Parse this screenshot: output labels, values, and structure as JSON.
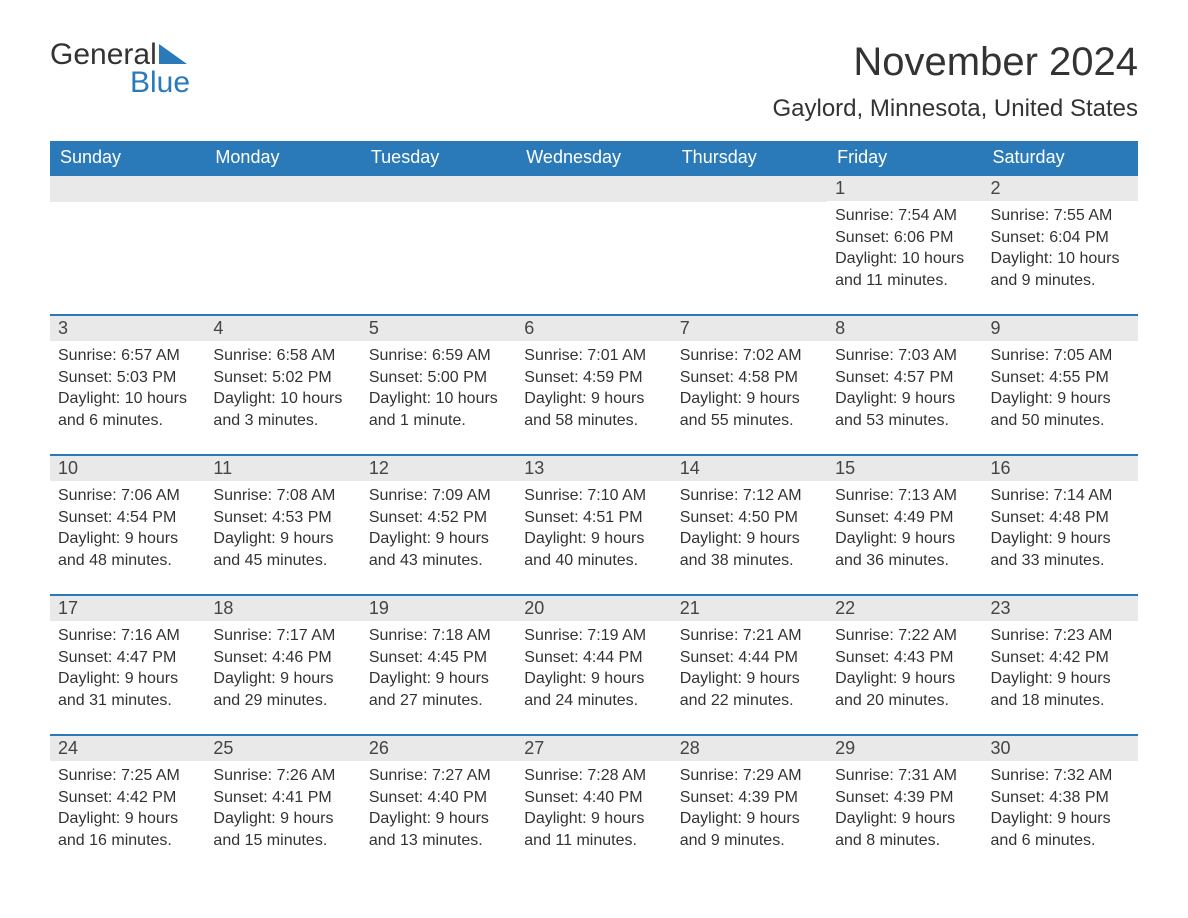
{
  "logo": {
    "text_general": "General",
    "text_blue": "Blue",
    "color_primary": "#2a7ab9",
    "color_text": "#333333"
  },
  "title": "November 2024",
  "location": "Gaylord, Minnesota, United States",
  "colors": {
    "header_bg": "#2a7ab9",
    "header_text": "#ffffff",
    "daynum_bg": "#e9e9e9",
    "border": "#2a7ab9",
    "body_text": "#333333",
    "page_bg": "#ffffff"
  },
  "font": {
    "family": "Arial",
    "title_size_pt": 30,
    "location_size_pt": 18,
    "header_size_pt": 14,
    "body_size_pt": 12
  },
  "day_headers": [
    "Sunday",
    "Monday",
    "Tuesday",
    "Wednesday",
    "Thursday",
    "Friday",
    "Saturday"
  ],
  "weeks": [
    [
      null,
      null,
      null,
      null,
      null,
      {
        "num": "1",
        "sunrise": "Sunrise: 7:54 AM",
        "sunset": "Sunset: 6:06 PM",
        "daylight": "Daylight: 10 hours and 11 minutes."
      },
      {
        "num": "2",
        "sunrise": "Sunrise: 7:55 AM",
        "sunset": "Sunset: 6:04 PM",
        "daylight": "Daylight: 10 hours and 9 minutes."
      }
    ],
    [
      {
        "num": "3",
        "sunrise": "Sunrise: 6:57 AM",
        "sunset": "Sunset: 5:03 PM",
        "daylight": "Daylight: 10 hours and 6 minutes."
      },
      {
        "num": "4",
        "sunrise": "Sunrise: 6:58 AM",
        "sunset": "Sunset: 5:02 PM",
        "daylight": "Daylight: 10 hours and 3 minutes."
      },
      {
        "num": "5",
        "sunrise": "Sunrise: 6:59 AM",
        "sunset": "Sunset: 5:00 PM",
        "daylight": "Daylight: 10 hours and 1 minute."
      },
      {
        "num": "6",
        "sunrise": "Sunrise: 7:01 AM",
        "sunset": "Sunset: 4:59 PM",
        "daylight": "Daylight: 9 hours and 58 minutes."
      },
      {
        "num": "7",
        "sunrise": "Sunrise: 7:02 AM",
        "sunset": "Sunset: 4:58 PM",
        "daylight": "Daylight: 9 hours and 55 minutes."
      },
      {
        "num": "8",
        "sunrise": "Sunrise: 7:03 AM",
        "sunset": "Sunset: 4:57 PM",
        "daylight": "Daylight: 9 hours and 53 minutes."
      },
      {
        "num": "9",
        "sunrise": "Sunrise: 7:05 AM",
        "sunset": "Sunset: 4:55 PM",
        "daylight": "Daylight: 9 hours and 50 minutes."
      }
    ],
    [
      {
        "num": "10",
        "sunrise": "Sunrise: 7:06 AM",
        "sunset": "Sunset: 4:54 PM",
        "daylight": "Daylight: 9 hours and 48 minutes."
      },
      {
        "num": "11",
        "sunrise": "Sunrise: 7:08 AM",
        "sunset": "Sunset: 4:53 PM",
        "daylight": "Daylight: 9 hours and 45 minutes."
      },
      {
        "num": "12",
        "sunrise": "Sunrise: 7:09 AM",
        "sunset": "Sunset: 4:52 PM",
        "daylight": "Daylight: 9 hours and 43 minutes."
      },
      {
        "num": "13",
        "sunrise": "Sunrise: 7:10 AM",
        "sunset": "Sunset: 4:51 PM",
        "daylight": "Daylight: 9 hours and 40 minutes."
      },
      {
        "num": "14",
        "sunrise": "Sunrise: 7:12 AM",
        "sunset": "Sunset: 4:50 PM",
        "daylight": "Daylight: 9 hours and 38 minutes."
      },
      {
        "num": "15",
        "sunrise": "Sunrise: 7:13 AM",
        "sunset": "Sunset: 4:49 PM",
        "daylight": "Daylight: 9 hours and 36 minutes."
      },
      {
        "num": "16",
        "sunrise": "Sunrise: 7:14 AM",
        "sunset": "Sunset: 4:48 PM",
        "daylight": "Daylight: 9 hours and 33 minutes."
      }
    ],
    [
      {
        "num": "17",
        "sunrise": "Sunrise: 7:16 AM",
        "sunset": "Sunset: 4:47 PM",
        "daylight": "Daylight: 9 hours and 31 minutes."
      },
      {
        "num": "18",
        "sunrise": "Sunrise: 7:17 AM",
        "sunset": "Sunset: 4:46 PM",
        "daylight": "Daylight: 9 hours and 29 minutes."
      },
      {
        "num": "19",
        "sunrise": "Sunrise: 7:18 AM",
        "sunset": "Sunset: 4:45 PM",
        "daylight": "Daylight: 9 hours and 27 minutes."
      },
      {
        "num": "20",
        "sunrise": "Sunrise: 7:19 AM",
        "sunset": "Sunset: 4:44 PM",
        "daylight": "Daylight: 9 hours and 24 minutes."
      },
      {
        "num": "21",
        "sunrise": "Sunrise: 7:21 AM",
        "sunset": "Sunset: 4:44 PM",
        "daylight": "Daylight: 9 hours and 22 minutes."
      },
      {
        "num": "22",
        "sunrise": "Sunrise: 7:22 AM",
        "sunset": "Sunset: 4:43 PM",
        "daylight": "Daylight: 9 hours and 20 minutes."
      },
      {
        "num": "23",
        "sunrise": "Sunrise: 7:23 AM",
        "sunset": "Sunset: 4:42 PM",
        "daylight": "Daylight: 9 hours and 18 minutes."
      }
    ],
    [
      {
        "num": "24",
        "sunrise": "Sunrise: 7:25 AM",
        "sunset": "Sunset: 4:42 PM",
        "daylight": "Daylight: 9 hours and 16 minutes."
      },
      {
        "num": "25",
        "sunrise": "Sunrise: 7:26 AM",
        "sunset": "Sunset: 4:41 PM",
        "daylight": "Daylight: 9 hours and 15 minutes."
      },
      {
        "num": "26",
        "sunrise": "Sunrise: 7:27 AM",
        "sunset": "Sunset: 4:40 PM",
        "daylight": "Daylight: 9 hours and 13 minutes."
      },
      {
        "num": "27",
        "sunrise": "Sunrise: 7:28 AM",
        "sunset": "Sunset: 4:40 PM",
        "daylight": "Daylight: 9 hours and 11 minutes."
      },
      {
        "num": "28",
        "sunrise": "Sunrise: 7:29 AM",
        "sunset": "Sunset: 4:39 PM",
        "daylight": "Daylight: 9 hours and 9 minutes."
      },
      {
        "num": "29",
        "sunrise": "Sunrise: 7:31 AM",
        "sunset": "Sunset: 4:39 PM",
        "daylight": "Daylight: 9 hours and 8 minutes."
      },
      {
        "num": "30",
        "sunrise": "Sunrise: 7:32 AM",
        "sunset": "Sunset: 4:38 PM",
        "daylight": "Daylight: 9 hours and 6 minutes."
      }
    ]
  ]
}
